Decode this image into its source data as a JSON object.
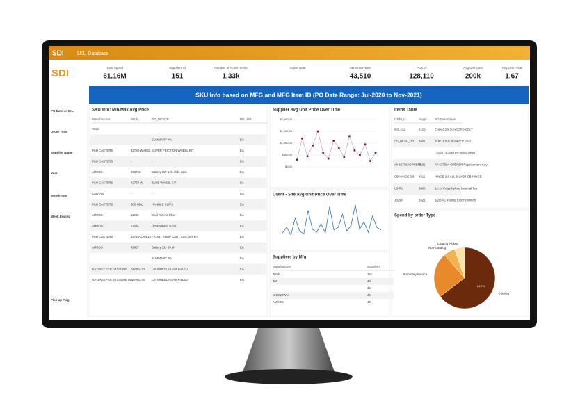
{
  "app": {
    "logo": "SDI",
    "title": "SKU Database"
  },
  "kpis": [
    {
      "label": "Total Spend",
      "value": "61.16M"
    },
    {
      "label": "Suppliers of",
      "value": "151"
    },
    {
      "label": "Number of Active Techs",
      "value": "1.33k"
    },
    {
      "label": "Active Date",
      "value": ""
    },
    {
      "label": "Items/Services",
      "value": "43,510"
    },
    {
      "label": "POs of",
      "value": "128,110"
    },
    {
      "label": "Avg Unit Cost",
      "value": "200k"
    },
    {
      "label": "Avg Unit Price",
      "value": "1.67"
    }
  ],
  "banner": "SKU Info based on MFG and MFG Item ID (PO Date Range: Jul-2020 to Nov-2021)",
  "filters": [
    "PO Date or Or...",
    "Order Type",
    "Supplier Name",
    "Year",
    "Month Year",
    "Week Ending",
    "Pick up Flag"
  ],
  "sku_table": {
    "title": "SKU Info: Min/Max/Avg Price",
    "columns": [
      "Manufacturer",
      "PO N...",
      "PO_DESCR",
      "PO U/M..."
    ],
    "rows": [
      [
        "Totals",
        "",
        "",
        ""
      ],
      [
        "",
        "",
        "SUMMARY INV",
        "EA"
      ],
      [
        "P&H CASTERS",
        "42758-WHEEL",
        "SUPER FRICTION WHEEL KIT",
        "EA"
      ],
      [
        "P&H CASTERS",
        "-",
        "-",
        "EA"
      ],
      [
        "AMROS",
        "996728",
        "Battery 12v 5Ah slide case",
        "EA"
      ],
      [
        "P&H CASTERS",
        "42758-W",
        "BLUE WHEEL KIT",
        "EA"
      ],
      [
        "CANTAS",
        "-",
        "-",
        "EA"
      ],
      [
        "P&H CASTERS",
        "300-HDL",
        "HANDLE CLIPS",
        "EA"
      ],
      [
        "AMROS",
        "11686",
        "Cool Roll Air Filter",
        "EA"
      ],
      [
        "AMROS",
        "11684",
        "Drive Wheel 11/58",
        "EA"
      ],
      [
        "P&H CASTERS",
        "42715-CA6815",
        "FRONT SHOP CART CASTER KIT",
        "EA"
      ],
      [
        "AMROS",
        "99667",
        "Battery 12v 33 ah",
        "EA"
      ],
      [
        "",
        "",
        "SUMMARY INV",
        "EA"
      ],
      [
        "GATEKEEPER SYSTEMS",
        "AGW6178",
        "CM WHEEL FOAM FILLED",
        "EA"
      ],
      [
        "GATEKEEPER SYSTEMS INC",
        "AGW6178",
        "CM WHEEL FOAM FILLED",
        "EA"
      ]
    ]
  },
  "supplier_chart": {
    "title": "Supplier Avg Unit Price Over Time",
    "values": [
      300,
      1200,
      450,
      900,
      1500,
      600,
      350,
      1100,
      800,
      400,
      1300,
      700,
      500,
      950,
      250,
      600
    ],
    "ylim": [
      0,
      2000
    ],
    "yticks": [
      {
        "value": 0,
        "label": "$0.00"
      },
      {
        "value": 500,
        "label": "$500.00"
      },
      {
        "value": 1000,
        "label": "$1,000.00"
      },
      {
        "value": 1500,
        "label": "$1,500.00"
      },
      {
        "value": 2000,
        "label": "$2,000.00"
      }
    ],
    "color": "#8e1a4a"
  },
  "client_chart": {
    "title": "Client - Site Avg Unit Price Over Time",
    "values": [
      20,
      35,
      15,
      60,
      25,
      18,
      80,
      30,
      22,
      45,
      20,
      90,
      28,
      35,
      70,
      25,
      40,
      95,
      30,
      50,
      22,
      65,
      35,
      28
    ],
    "ylim": [
      0,
      100
    ],
    "color": "#2f6fb5"
  },
  "suppliers_table": {
    "title": "Suppliers by Mfg",
    "columns": [
      "Manufacturer",
      "Suppliers"
    ],
    "rows": [
      [
        "Totals",
        "151"
      ],
      [
        "3M",
        "48"
      ],
      [
        "",
        "45"
      ],
      [
        "UNKNOWN",
        "44"
      ],
      [
        "AMROS",
        "40"
      ]
    ]
  },
  "items_table": {
    "title": "Items Table",
    "columns": [
      "ITEM_I...",
      "Suppl...",
      "PO Description"
    ],
    "rows": [
      [
        "885,211",
        "8126",
        "ENDLESS SUNCORD BELT"
      ],
      [
        "SS_DEAL_OR...",
        "8401",
        "TOP DOCK BUMPER PAD"
      ],
      [
        "",
        "",
        "CATALOG ANDREW MADRID"
      ],
      [
        "AY-51700AOPNERB",
        "8181",
        "AY-51700A OPENER Replacement Key"
      ],
      [
        "CB-HINGE-2.8",
        "8311",
        "HINGE 2.8 ALL SILVER CB-HINGE"
      ],
      [
        "LS-R1",
        "8806",
        "12-14 Polyethylene Material Tea"
      ],
      [
        "J3054",
        "8321",
        "1/2/3 AC Pulling Electric Winch"
      ]
    ]
  },
  "spend_chart": {
    "title": "Spend by order Type",
    "slices": [
      {
        "label": "Catalog",
        "value": 64.7,
        "value_label": "64.7%",
        "color": "#6b2a0c"
      },
      {
        "label": "Summary Invoice",
        "value": 24,
        "color": "#e8892a"
      },
      {
        "label": "Non-Catalog",
        "value": 6,
        "color": "#f3b24a"
      },
      {
        "label": "Catalog Pickup",
        "value": 5.3,
        "color": "#fbe3a8"
      }
    ]
  }
}
